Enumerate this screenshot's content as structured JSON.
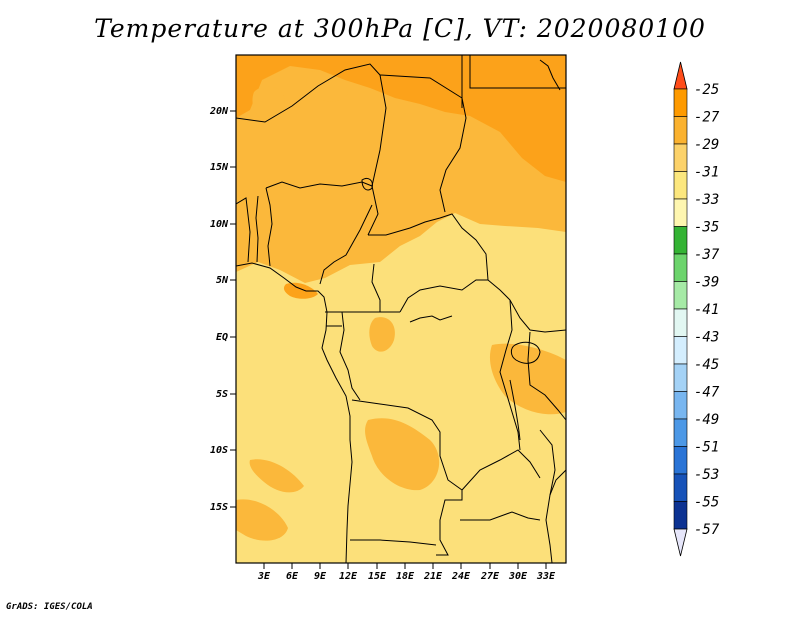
{
  "title": "Temperature at 300hPa [C], VT: 2020080100",
  "credit": "GrADS: IGES/COLA",
  "lat_labels": [
    "20N",
    "15N",
    "10N",
    "5N",
    "EQ",
    "5S",
    "10S",
    "15S"
  ],
  "lon_labels": [
    "3E",
    "6E",
    "9E",
    "12E",
    "15E",
    "18E",
    "21E",
    "24E",
    "27E",
    "30E",
    "33E"
  ],
  "colorbar": {
    "labels": [
      "-25",
      "-27",
      "-29",
      "-31",
      "-33",
      "-35",
      "-37",
      "-39",
      "-41",
      "-43",
      "-45",
      "-47",
      "-49",
      "-51",
      "-53",
      "-55",
      "-57"
    ],
    "colors": [
      "#ff6a00",
      "#fe9a00",
      "#fbb22f",
      "#fcd26a",
      "#fce77e",
      "#fef6b0",
      "#34b334",
      "#6cd46c",
      "#a6eaa6",
      "#e2f7f2",
      "#d4eefe",
      "#a4d2f6",
      "#78b6f0",
      "#4c98e6",
      "#2a74d6",
      "#1652b8",
      "#0c3292",
      "#0a157a"
    ],
    "top_color": "#ff4d1a",
    "bottom_color": "#e6e6fa"
  },
  "field_colors": {
    "c31_33": "#fce07a",
    "c29_31": "#fbb83b",
    "c27_29": "#fca21a"
  }
}
